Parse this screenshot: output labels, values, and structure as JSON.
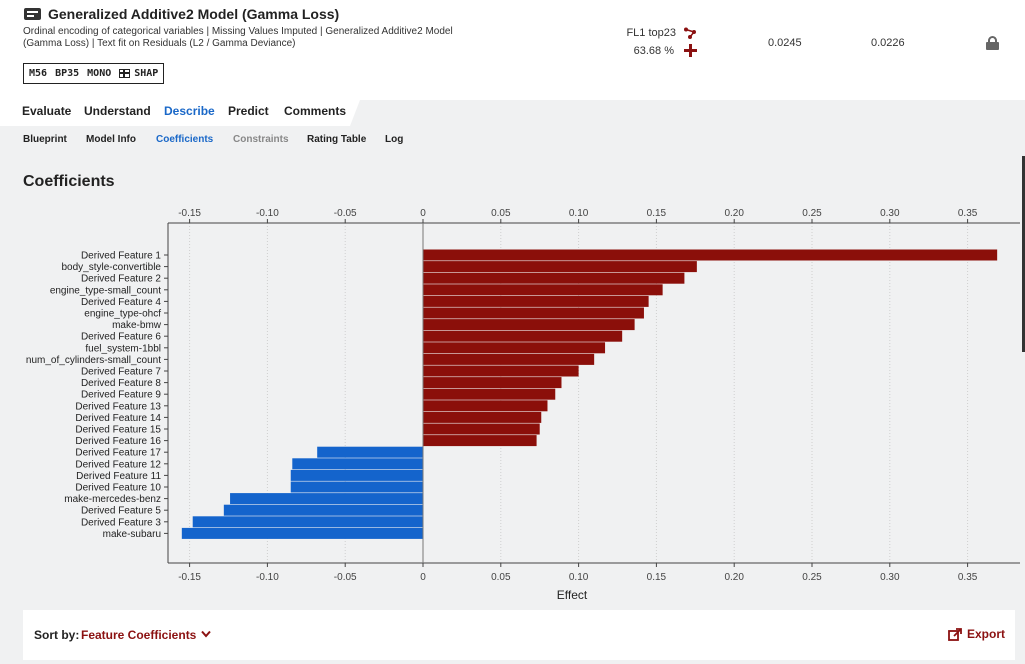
{
  "header": {
    "icon": "model-icon",
    "title": "Generalized Additive2 Model (Gamma Loss)",
    "description": "Ordinal encoding of categorical variables | Missing Values Imputed | Generalized Additive2 Model (Gamma Loss) | Text fit on Residuals (L2 / Gamma Deviance)",
    "badges": [
      "M56",
      "BP35",
      "MONO",
      "SHAP"
    ],
    "feature_list": "FL1 top23",
    "sample_pct": "63.68 %",
    "metric_validation": "0.0245",
    "metric_crossval": "0.0226",
    "accent_color": "#8b1111"
  },
  "tabs": [
    {
      "label": "Evaluate",
      "active": false
    },
    {
      "label": "Understand",
      "active": false
    },
    {
      "label": "Describe",
      "active": true
    },
    {
      "label": "Predict",
      "active": false
    },
    {
      "label": "Comments",
      "active": false
    }
  ],
  "subtabs": [
    {
      "label": "Blueprint",
      "state": "normal"
    },
    {
      "label": "Model Info",
      "state": "normal"
    },
    {
      "label": "Coefficients",
      "state": "active"
    },
    {
      "label": "Constraints",
      "state": "disabled"
    },
    {
      "label": "Rating Table",
      "state": "normal"
    },
    {
      "label": "Log",
      "state": "normal"
    }
  ],
  "section_title": "Coefficients",
  "chart_data": {
    "type": "bar",
    "orientation": "horizontal",
    "xlabel": "Effect",
    "xlim": [
      -0.165,
      0.375
    ],
    "xticks": [
      -0.15,
      -0.1,
      -0.05,
      0,
      0.05,
      0.1,
      0.15,
      0.2,
      0.25,
      0.3,
      0.35
    ],
    "xtick_labels": [
      "-0.15",
      "-0.10",
      "-0.05",
      "0",
      "0.05",
      "0.10",
      "0.15",
      "0.20",
      "0.25",
      "0.30",
      "0.35"
    ],
    "grid": "vertical dotted",
    "positive_color": "#8b0f0a",
    "negative_color": "#1464cc",
    "categories": [
      "Derived Feature 1",
      "body_style-convertible",
      "Derived Feature 2",
      "engine_type-small_count",
      "Derived Feature 4",
      "engine_type-ohcf",
      "make-bmw",
      "Derived Feature 6",
      "fuel_system-1bbl",
      "num_of_cylinders-small_count",
      "Derived Feature 7",
      "Derived Feature 8",
      "Derived Feature 9",
      "Derived Feature 13",
      "Derived Feature 14",
      "Derived Feature 15",
      "Derived Feature 16",
      "Derived Feature 17",
      "Derived Feature 12",
      "Derived Feature 11",
      "Derived Feature 10",
      "make-mercedes-benz",
      "Derived Feature 5",
      "Derived Feature 3",
      "make-subaru"
    ],
    "values": [
      0.369,
      0.176,
      0.168,
      0.154,
      0.145,
      0.142,
      0.136,
      0.128,
      0.117,
      0.11,
      0.1,
      0.089,
      0.085,
      0.08,
      0.076,
      0.075,
      0.073,
      -0.068,
      -0.084,
      -0.085,
      -0.085,
      -0.124,
      -0.128,
      -0.148,
      -0.155
    ]
  },
  "sort": {
    "label": "Sort by:",
    "value": "Feature Coefficients",
    "icon": "chevron-down-icon"
  },
  "export": {
    "label": "Export",
    "icon": "export-icon"
  }
}
